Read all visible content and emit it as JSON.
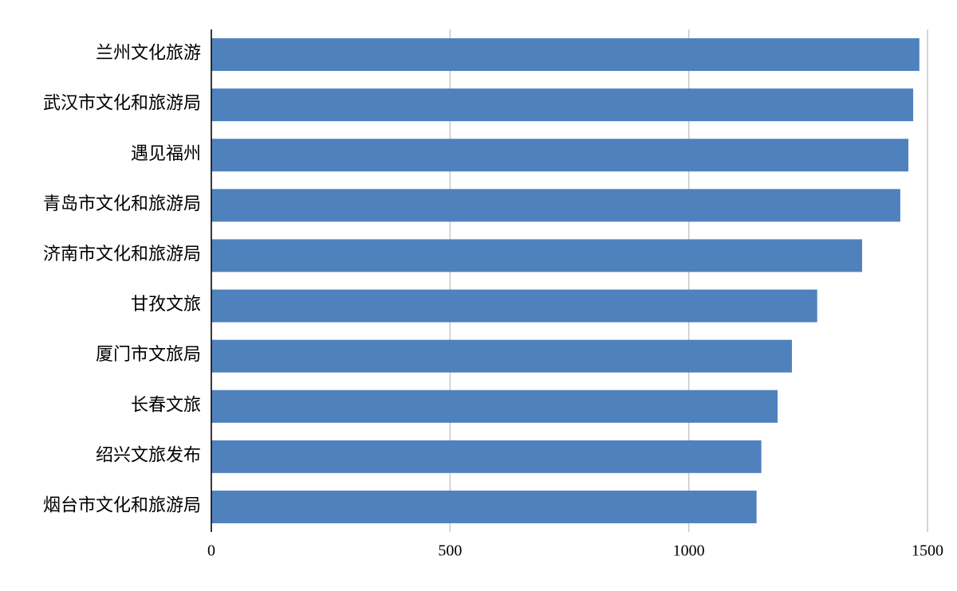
{
  "chart_data": {
    "type": "bar",
    "orientation": "horizontal",
    "categories": [
      "兰州文化旅游",
      "武汉市文化和旅游局",
      "遇见福州",
      "青岛市文化和旅游局",
      "济南市文化和旅游局",
      "甘孜文旅",
      "厦门市文旅局",
      "长春文旅",
      "绍兴文旅发布",
      "烟台市文化和旅游局"
    ],
    "values": [
      1483,
      1470,
      1460,
      1443,
      1363,
      1269,
      1216,
      1186,
      1152,
      1142
    ],
    "color": "#4f81bd",
    "xlim": [
      0,
      1500
    ],
    "xticks": [
      0,
      500,
      1000,
      1500
    ],
    "grid": true
  }
}
